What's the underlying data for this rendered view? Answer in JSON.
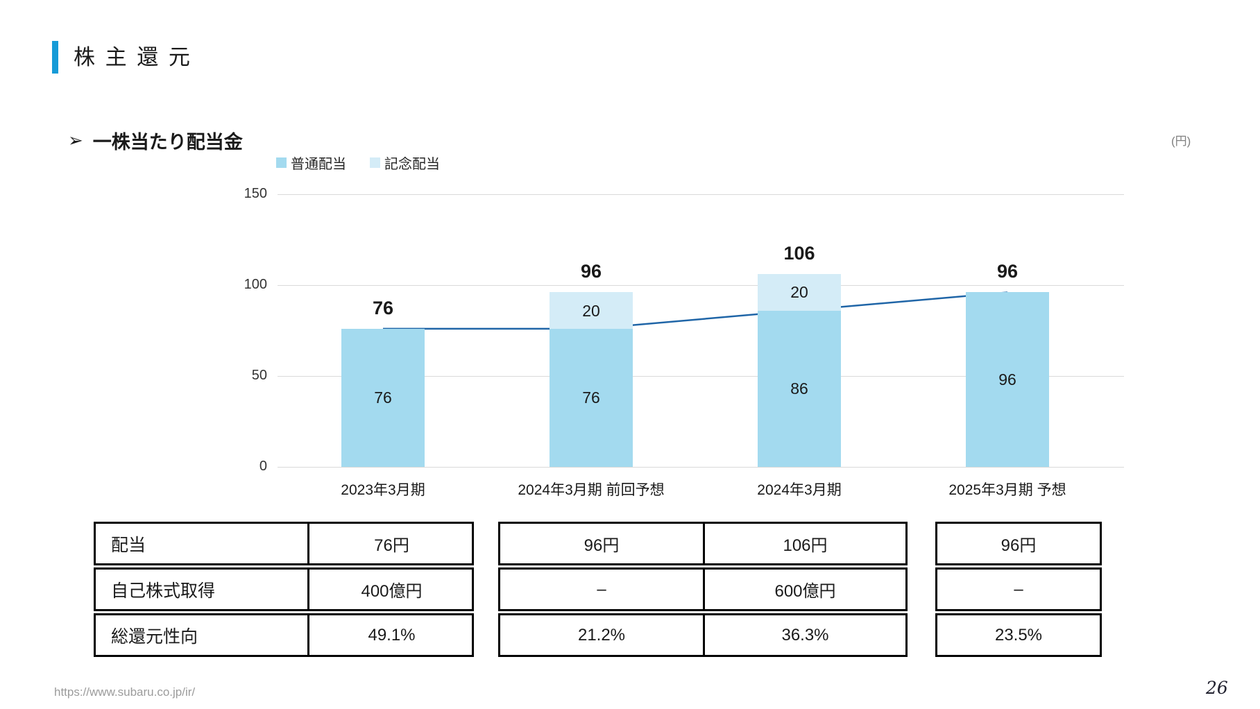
{
  "page": {
    "title": "株 主 還 元",
    "bullet": "➢",
    "subtitle": "一株当たり配当金",
    "unit_label": "(円)",
    "footer_url": "https://www.subaru.co.jp/ir/",
    "page_number": "26"
  },
  "colors": {
    "accent_bar": "#169BD7",
    "ordinary": "#A3DAEF",
    "commemorative": "#D4ECF7",
    "trend_line": "#1F65A7",
    "gridline": "#D9D9D9",
    "muted": "#8C8C8C"
  },
  "chart_data": {
    "type": "bar",
    "stacked": true,
    "title": "一株当たり配当金",
    "unit": "円",
    "categories": [
      "2023年3月期",
      "2024年3月期 前回予想",
      "2024年3月期",
      "2025年3月期 予想"
    ],
    "series": [
      {
        "name": "普通配当",
        "values": [
          76,
          76,
          86,
          96
        ],
        "color_key": "ordinary"
      },
      {
        "name": "記念配当",
        "values": [
          0,
          20,
          20,
          0
        ],
        "color_key": "commemorative"
      }
    ],
    "totals": [
      76,
      96,
      106,
      96
    ],
    "trend_line_values": [
      76,
      76,
      86,
      96
    ],
    "ylim": [
      0,
      150
    ],
    "yticks": [
      0,
      50,
      100,
      150
    ],
    "grid": true,
    "legend_position": "top"
  },
  "summary_table": {
    "row_labels": [
      "配当",
      "自己株式取得",
      "総還元性向"
    ],
    "columns": [
      [
        "76円",
        "400億円",
        "49.1%"
      ],
      [
        "96円",
        "–",
        "21.2%"
      ],
      [
        "106円",
        "600億円",
        "36.3%"
      ],
      [
        "96円",
        "–",
        "23.5%"
      ]
    ]
  }
}
